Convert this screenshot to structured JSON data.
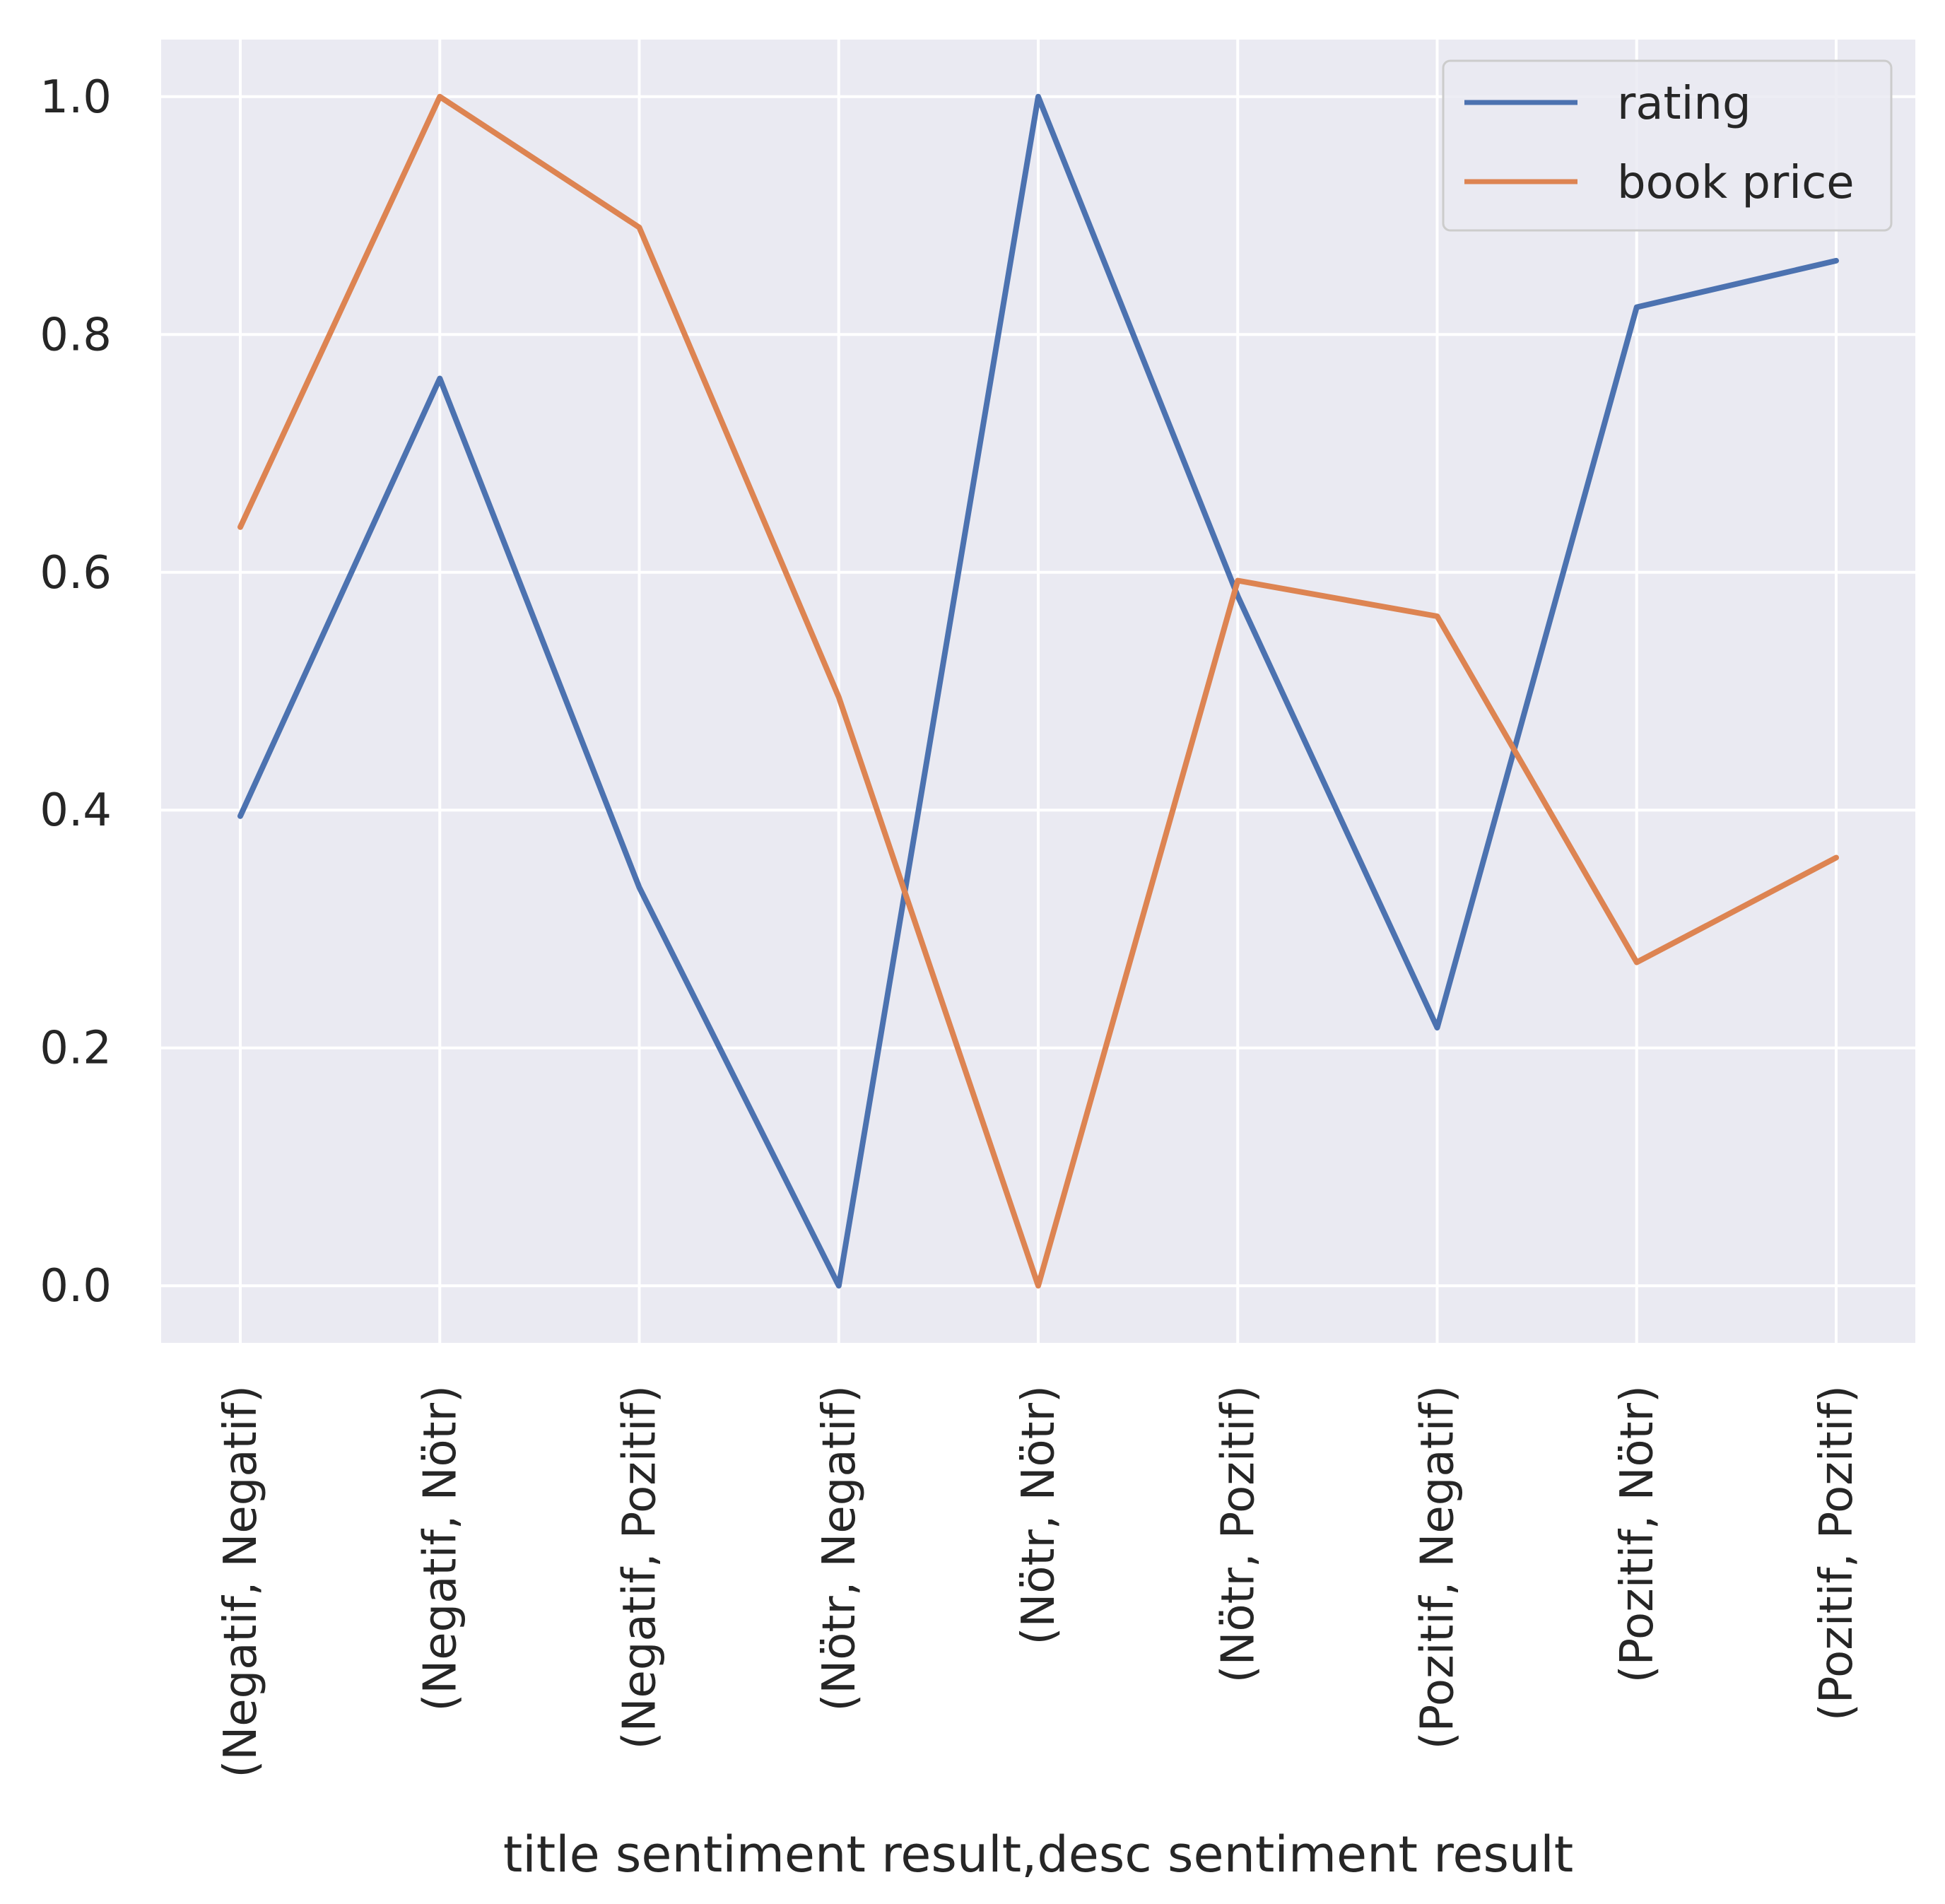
{
  "chart_data": {
    "type": "line",
    "title": "",
    "xlabel": "title sentiment result,desc sentiment result",
    "ylabel": "",
    "categories": [
      "(Negatif, Negatif)",
      "(Negatif, Nötr)",
      "(Negatif, Pozitif)",
      "(Nötr, Negatif)",
      "(Nötr, Nötr)",
      "(Nötr, Pozitif)",
      "(Pozitif, Negatif)",
      "(Pozitif, Nötr)",
      "(Pozitif, Pozitif)"
    ],
    "series": [
      {
        "name": "rating",
        "color": "#4c72b0",
        "values": [
          0.395,
          0.763,
          0.335,
          0.0,
          1.0,
          0.58,
          0.217,
          0.823,
          0.862
        ]
      },
      {
        "name": "book price",
        "color": "#dd8452",
        "values": [
          0.638,
          1.0,
          0.89,
          0.495,
          0.0,
          0.593,
          0.563,
          0.272,
          0.36
        ]
      }
    ],
    "ylim": [
      -0.048,
      1.048
    ],
    "yticks": [
      0.0,
      0.2,
      0.4,
      0.6,
      0.8,
      1.0
    ],
    "ytick_labels": [
      "0.0",
      "0.2",
      "0.4",
      "0.6",
      "0.8",
      "1.0"
    ],
    "grid": true,
    "legend": "top-right",
    "background_color": "#eaeaf2",
    "grid_color": "#ffffff"
  }
}
